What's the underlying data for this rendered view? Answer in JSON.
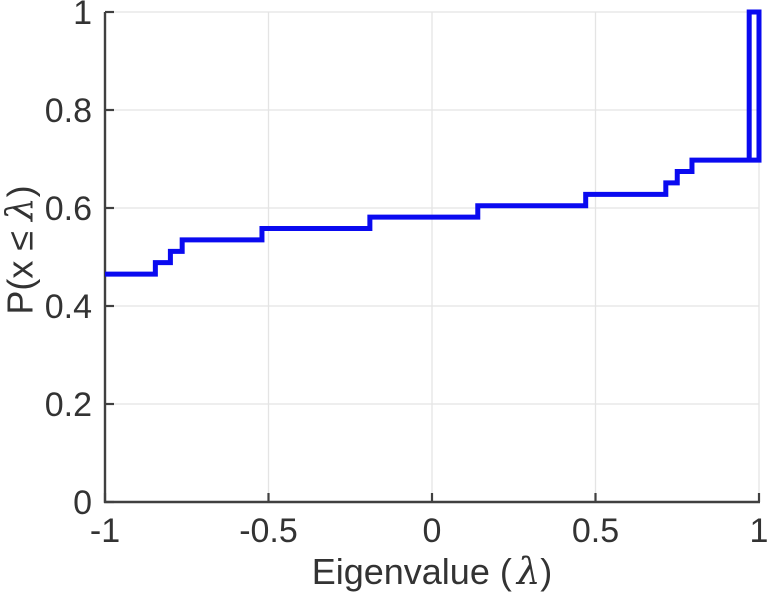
{
  "chart_data": {
    "type": "step",
    "description": "Empirical cumulative distribution function of eigenvalues (blue staircase line)",
    "title": "",
    "xlabel": {
      "prefix": "Eigenvalue (",
      "lambda": "λ",
      "suffix": ")"
    },
    "ylabel": {
      "prefix": "P(x ≤ ",
      "lambda": "λ",
      "suffix": ")"
    },
    "xlim": [
      -1,
      1
    ],
    "ylim": [
      0,
      1
    ],
    "xticks": [
      {
        "v": -1,
        "label": "-1"
      },
      {
        "v": -0.5,
        "label": "-0.5"
      },
      {
        "v": 0,
        "label": "0"
      },
      {
        "v": 0.5,
        "label": "0.5"
      },
      {
        "v": 1,
        "label": "1"
      }
    ],
    "yticks": [
      {
        "v": 0,
        "label": "0"
      },
      {
        "v": 0.2,
        "label": "0.2"
      },
      {
        "v": 0.4,
        "label": "0.4"
      },
      {
        "v": 0.6,
        "label": "0.6"
      },
      {
        "v": 0.8,
        "label": "0.8"
      },
      {
        "v": 1,
        "label": "1"
      }
    ],
    "grid": "on",
    "legend": "none",
    "colors": {
      "line": "#0a0af0",
      "axis": "#404040",
      "text": "#333333",
      "grid": "#e4e4e4",
      "background": "#ffffff"
    },
    "curve_vertices": [
      [
        -1.0,
        0.4651
      ],
      [
        -0.846,
        0.4651
      ],
      [
        -0.846,
        0.4884
      ],
      [
        -0.8,
        0.4884
      ],
      [
        -0.8,
        0.5116
      ],
      [
        -0.764,
        0.5116
      ],
      [
        -0.764,
        0.5349
      ],
      [
        -0.52,
        0.5349
      ],
      [
        -0.52,
        0.5581
      ],
      [
        -0.19,
        0.5581
      ],
      [
        -0.19,
        0.5814
      ],
      [
        0.14,
        0.5814
      ],
      [
        0.14,
        0.6047
      ],
      [
        0.47,
        0.6047
      ],
      [
        0.47,
        0.6279
      ],
      [
        0.715,
        0.6279
      ],
      [
        0.715,
        0.6512
      ],
      [
        0.75,
        0.6512
      ],
      [
        0.75,
        0.6744
      ],
      [
        0.795,
        0.6744
      ],
      [
        0.795,
        0.6977
      ],
      [
        1.0,
        0.6977
      ],
      [
        1.0,
        1.0
      ],
      [
        0.97,
        1.0
      ],
      [
        0.97,
        0.6977
      ]
    ]
  }
}
